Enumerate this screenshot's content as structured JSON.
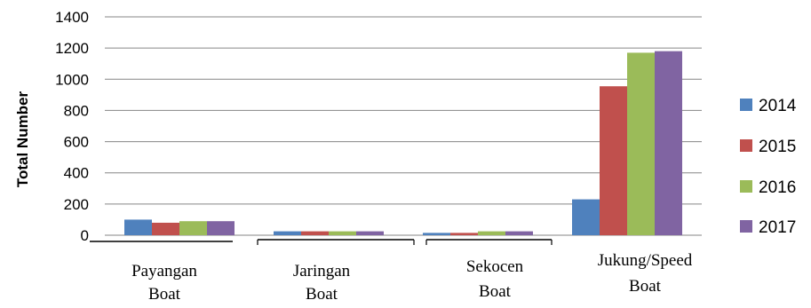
{
  "chart_data": {
    "type": "bar",
    "categories": [
      [
        "Payangan",
        "Boat"
      ],
      [
        "Jaringan",
        "Boat"
      ],
      [
        "Sekocen",
        "Boat"
      ],
      [
        "Jukung/Speed",
        "Boat"
      ]
    ],
    "series": [
      {
        "name": "2014",
        "color": "#4F81BD",
        "values": [
          100,
          25,
          15,
          230
        ]
      },
      {
        "name": "2015",
        "color": "#C0504D",
        "values": [
          80,
          25,
          15,
          955
        ]
      },
      {
        "name": "2016",
        "color": "#9BBB59",
        "values": [
          90,
          25,
          25,
          1170
        ]
      },
      {
        "name": "2017",
        "color": "#8064A2",
        "values": [
          90,
          25,
          25,
          1180
        ]
      }
    ],
    "ylabel": "Total Number",
    "ylim": [
      0,
      1400
    ],
    "yticks": [
      "0",
      "200",
      "400",
      "600",
      "800",
      "1000",
      "1200",
      "1400"
    ],
    "grid": true,
    "legend": "right"
  }
}
